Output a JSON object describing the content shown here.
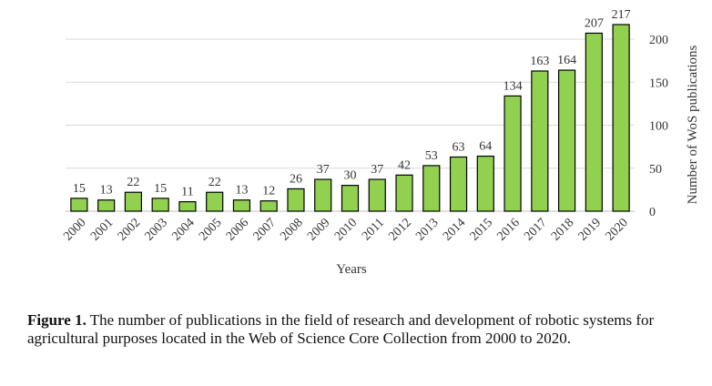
{
  "chart_data": {
    "type": "bar",
    "categories": [
      "2000",
      "2001",
      "2002",
      "2003",
      "2004",
      "2005",
      "2006",
      "2007",
      "2008",
      "2009",
      "2010",
      "2011",
      "2012",
      "2013",
      "2014",
      "2015",
      "2016",
      "2017",
      "2018",
      "2019",
      "2020"
    ],
    "values": [
      15,
      13,
      22,
      15,
      11,
      22,
      13,
      12,
      26,
      37,
      30,
      37,
      42,
      53,
      63,
      64,
      134,
      163,
      164,
      207,
      217
    ],
    "xlabel": "Years",
    "ylabel": "Number of WoS publications",
    "ylim": [
      0,
      217
    ],
    "yticks": [
      0,
      50,
      100,
      150,
      200
    ],
    "y_axis_side": "right",
    "grid": true,
    "bar_color": "#92d050",
    "bar_edge_color": "#000000"
  },
  "caption": {
    "label": "Figure 1.",
    "text": " The number of publications in the field of research and development of robotic systems for agricultural purposes located in the Web of Science Core Collection from 2000 to 2020."
  }
}
